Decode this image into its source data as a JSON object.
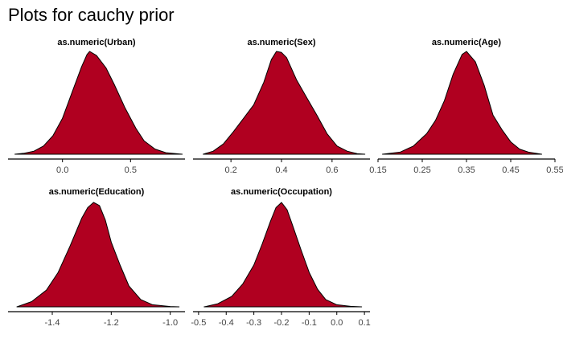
{
  "page": {
    "title": "Plots for cauchy prior"
  },
  "chart_data": [
    {
      "type": "area",
      "title": "as.numeric(Urban)",
      "xlim": [
        -0.4,
        0.9
      ],
      "ticks": [
        0.0,
        0.5
      ],
      "tick_labels": [
        "0.0",
        "0.5"
      ],
      "x": [
        -0.35,
        -0.28,
        -0.21,
        -0.14,
        -0.07,
        0.0,
        0.07,
        0.14,
        0.18,
        0.2,
        0.25,
        0.32,
        0.38,
        0.46,
        0.54,
        0.6,
        0.68,
        0.76,
        0.88
      ],
      "density": [
        0.0,
        0.01,
        0.03,
        0.08,
        0.18,
        0.35,
        0.6,
        0.85,
        0.97,
        1.0,
        0.96,
        0.84,
        0.68,
        0.45,
        0.25,
        0.13,
        0.05,
        0.015,
        0.0
      ]
    },
    {
      "type": "area",
      "title": "as.numeric(Sex)",
      "xlim": [
        0.05,
        0.75
      ],
      "ticks": [
        0.2,
        0.4,
        0.6
      ],
      "tick_labels": [
        "0.2",
        "0.4",
        "0.6"
      ],
      "x": [
        0.09,
        0.13,
        0.17,
        0.21,
        0.25,
        0.29,
        0.33,
        0.36,
        0.38,
        0.4,
        0.42,
        0.46,
        0.5,
        0.54,
        0.58,
        0.62,
        0.66,
        0.7,
        0.73
      ],
      "density": [
        0.0,
        0.03,
        0.1,
        0.22,
        0.35,
        0.48,
        0.7,
        0.92,
        1.0,
        0.99,
        0.94,
        0.72,
        0.55,
        0.38,
        0.2,
        0.08,
        0.03,
        0.005,
        0.0
      ]
    },
    {
      "type": "area",
      "title": "as.numeric(Age)",
      "xlim": [
        0.15,
        0.55
      ],
      "ticks": [
        0.15,
        0.25,
        0.35,
        0.45,
        0.55
      ],
      "tick_labels": [
        "0.15",
        "0.25",
        "0.35",
        "0.45",
        "0.55"
      ],
      "x": [
        0.16,
        0.2,
        0.23,
        0.26,
        0.28,
        0.3,
        0.32,
        0.34,
        0.35,
        0.37,
        0.39,
        0.41,
        0.43,
        0.45,
        0.47,
        0.49,
        0.52
      ],
      "density": [
        0.0,
        0.02,
        0.08,
        0.2,
        0.33,
        0.52,
        0.78,
        0.97,
        1.0,
        0.9,
        0.67,
        0.38,
        0.24,
        0.12,
        0.05,
        0.02,
        0.0
      ]
    },
    {
      "type": "area",
      "title": "as.numeric(Education)",
      "xlim": [
        -1.55,
        -0.95
      ],
      "ticks": [
        -1.4,
        -1.2,
        -1.0
      ],
      "tick_labels": [
        "-1.4",
        "-1.2",
        "-1.0"
      ],
      "x": [
        -1.52,
        -1.47,
        -1.42,
        -1.38,
        -1.34,
        -1.3,
        -1.28,
        -1.26,
        -1.24,
        -1.22,
        -1.2,
        -1.17,
        -1.14,
        -1.1,
        -1.06,
        -1.0,
        -0.97
      ],
      "density": [
        0.0,
        0.05,
        0.16,
        0.33,
        0.58,
        0.85,
        0.95,
        1.0,
        0.97,
        0.83,
        0.62,
        0.4,
        0.2,
        0.07,
        0.02,
        0.003,
        0.0
      ]
    },
    {
      "type": "area",
      "title": "as.numeric(Occupation)",
      "xlim": [
        -0.52,
        0.12
      ],
      "ticks": [
        -0.5,
        -0.4,
        -0.3,
        -0.2,
        -0.1,
        0.0,
        0.1
      ],
      "tick_labels": [
        "-0.5",
        "-0.4",
        "-0.3",
        "-0.2",
        "-0.1",
        "0.0",
        "0.1"
      ],
      "x": [
        -0.48,
        -0.43,
        -0.38,
        -0.34,
        -0.3,
        -0.27,
        -0.24,
        -0.22,
        -0.2,
        -0.18,
        -0.16,
        -0.13,
        -0.1,
        -0.07,
        -0.04,
        0.0,
        0.05,
        0.09
      ],
      "density": [
        0.0,
        0.03,
        0.1,
        0.22,
        0.4,
        0.6,
        0.82,
        0.95,
        1.0,
        0.93,
        0.78,
        0.55,
        0.33,
        0.17,
        0.07,
        0.02,
        0.005,
        0.0
      ]
    }
  ],
  "colors": {
    "fill": "#b00020",
    "outline": "#000000",
    "axis": "#000000",
    "tick_text": "#444444"
  }
}
